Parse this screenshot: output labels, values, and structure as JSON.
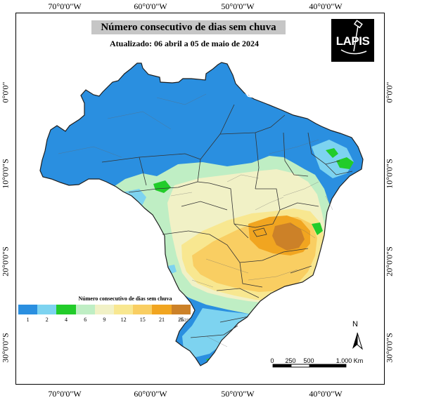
{
  "title": "Número consecutivo de dias sem chuva",
  "subtitle": "Atualizado: 06 abril a 05 de maio de 2024",
  "logo": {
    "text": "LAPIS"
  },
  "axes": {
    "top": [
      "70°0'0\"W",
      "60°0'0\"W",
      "50°0'0\"W",
      "40°0'0\"W"
    ],
    "bottom": [
      "70°0'0\"W",
      "60°0'0\"W",
      "50°0'0\"W",
      "40°0'0\"W"
    ],
    "left": [
      "0°0'0\"",
      "10°0'0\"S",
      "20°0'0\"S",
      "30°0'0\"S"
    ],
    "right": [
      "0°0'0\"",
      "10°0'0\"S",
      "20°0'0\"S",
      "30°0'0\"S"
    ]
  },
  "legend": {
    "title": "Número consecutivo de dias sem chuva",
    "labels": [
      "1",
      "2",
      "4",
      "6",
      "9",
      "12",
      "15",
      "21",
      "26"
    ],
    "unit": "dias",
    "colors": [
      "#2a8fe0",
      "#7dd3f0",
      "#22cc2a",
      "#bfeec4",
      "#f1f1c6",
      "#f8e790",
      "#f9ce62",
      "#f1a520",
      "#cc8128"
    ]
  },
  "north_arrow": {
    "label": "N"
  },
  "scale_bar": {
    "labels": [
      "0",
      "250",
      "500",
      "1.000 Km"
    ]
  }
}
